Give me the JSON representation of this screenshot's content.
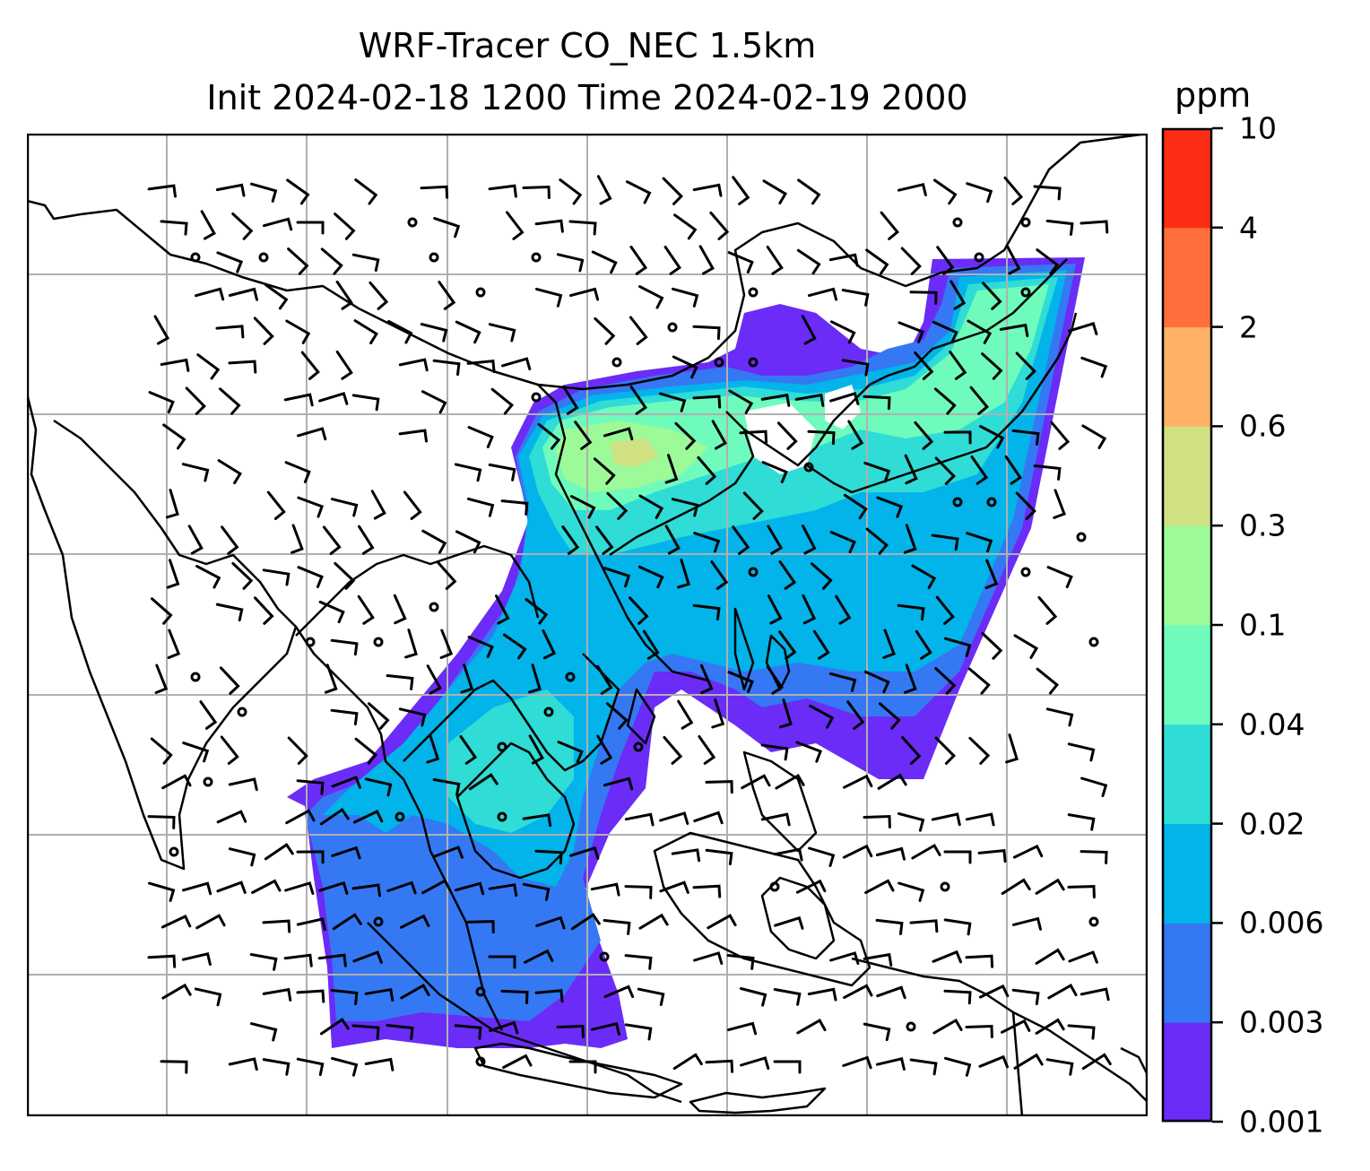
{
  "title_line1": "WRF-Tracer CO_NEC 1.5km",
  "title_line2": "Init 2024-02-18 1200 Time 2024-02-19 2000",
  "colorbar": {
    "unit": "ppm",
    "levels": [
      "0.001",
      "0.003",
      "0.006",
      "0.02",
      "0.04",
      "0.1",
      "0.3",
      "0.6",
      "2",
      "4",
      "10"
    ],
    "colors": [
      "#6a2cf6",
      "#3478f4",
      "#02b4e9",
      "#2fdcd6",
      "#6ffbbc",
      "#9dfa98",
      "#d0e184",
      "#feb265",
      "#fe6f3d",
      "#fe2d16"
    ]
  },
  "map": {
    "gridlines": true,
    "coastlines": true,
    "wind_barbs": true,
    "field": "CO_NEC tracer concentration"
  }
}
